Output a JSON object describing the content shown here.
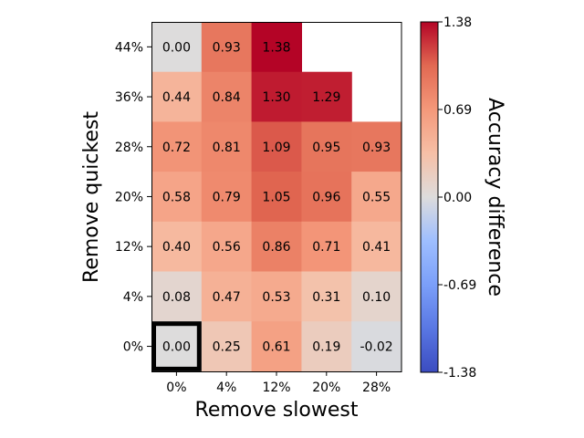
{
  "chart_data": {
    "type": "heatmap",
    "title": "",
    "xlabel": "Remove slowest",
    "ylabel": "Remove quickest",
    "x_categories": [
      "0%",
      "4%",
      "12%",
      "20%",
      "28%"
    ],
    "y_categories": [
      "0%",
      "4%",
      "12%",
      "20%",
      "28%",
      "36%",
      "44%"
    ],
    "rows": [
      {
        "y": "44%",
        "values": [
          0.0,
          0.93,
          1.38,
          null,
          null
        ]
      },
      {
        "y": "36%",
        "values": [
          0.44,
          0.84,
          1.3,
          1.29,
          null
        ]
      },
      {
        "y": "28%",
        "values": [
          0.72,
          0.81,
          1.09,
          0.95,
          0.93
        ]
      },
      {
        "y": "20%",
        "values": [
          0.58,
          0.79,
          1.05,
          0.96,
          0.55
        ]
      },
      {
        "y": "12%",
        "values": [
          0.4,
          0.56,
          0.86,
          0.71,
          0.41
        ]
      },
      {
        "y": "4%",
        "values": [
          0.08,
          0.47,
          0.53,
          0.31,
          0.1
        ]
      },
      {
        "y": "0%",
        "values": [
          0.0,
          0.25,
          0.61,
          0.19,
          -0.02
        ]
      }
    ],
    "highlighted_cell": {
      "x": "0%",
      "y": "0%"
    },
    "colorbar": {
      "label": "Accuracy difference",
      "range": [
        -1.38,
        1.38
      ],
      "ticks": [
        "1.38",
        "0.69",
        "0.00",
        "-0.69",
        "-1.38"
      ],
      "colormap": "coolwarm"
    },
    "grid": false
  }
}
